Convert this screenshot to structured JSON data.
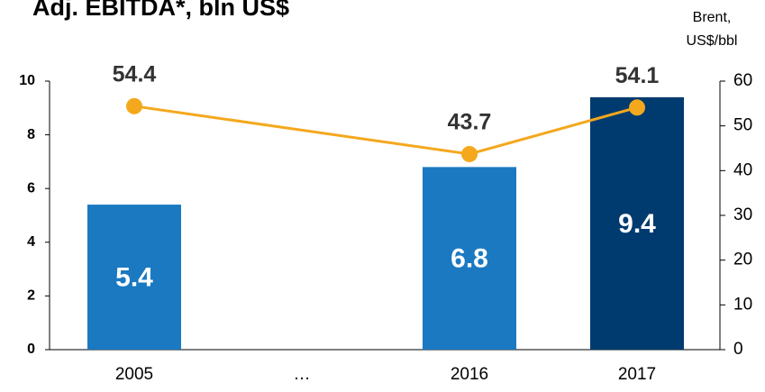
{
  "chart_data": {
    "type": "bar_line",
    "title": "Adj. EBITDA*, bln US$",
    "y2label": [
      "Brent,",
      "US$/bbl"
    ],
    "categories": [
      "2005",
      "…",
      "2016",
      "2017"
    ],
    "series": [
      {
        "name": "Adj. EBITDA",
        "values": [
          5.4,
          null,
          6.8,
          9.4
        ],
        "colors": [
          "#1b79c1",
          "#1b79c1",
          "#1b79c1",
          "#003b70"
        ]
      },
      {
        "name": "Brent",
        "axis": "y2",
        "color": "#f4a81d",
        "values": [
          54.4,
          null,
          43.7,
          54.1
        ],
        "connect_nulls": true
      }
    ],
    "ylim": [
      0,
      10
    ],
    "yticks": [
      0,
      2,
      4,
      6,
      8,
      10
    ],
    "y2lim": [
      0,
      60
    ],
    "y2ticks": [
      0,
      10,
      20,
      30,
      40,
      50,
      60
    ]
  }
}
